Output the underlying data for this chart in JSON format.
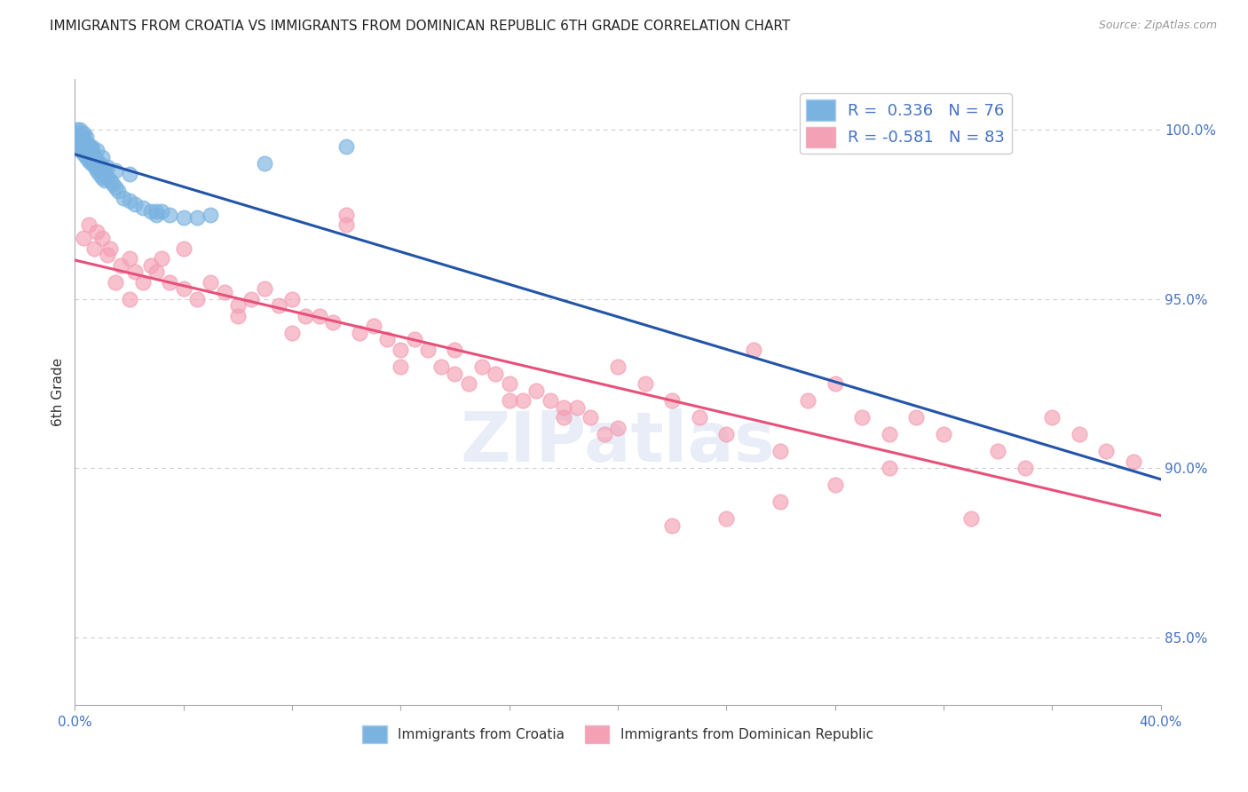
{
  "title": "IMMIGRANTS FROM CROATIA VS IMMIGRANTS FROM DOMINICAN REPUBLIC 6TH GRADE CORRELATION CHART",
  "source": "Source: ZipAtlas.com",
  "ylabel": "6th Grade",
  "xlim": [
    0.0,
    40.0
  ],
  "ylim": [
    83.0,
    101.5
  ],
  "yticks_right": [
    85.0,
    90.0,
    95.0,
    100.0
  ],
  "blue_color": "#7ab3e0",
  "pink_color": "#f4a0b5",
  "blue_line_color": "#2255aa",
  "pink_line_color": "#e8507a",
  "legend_blue_label": "R =  0.336   N = 76",
  "legend_pink_label": "R = -0.581   N = 83",
  "watermark": "ZIPatlas",
  "blue_scatter_x": [
    0.05,
    0.1,
    0.1,
    0.15,
    0.15,
    0.2,
    0.2,
    0.2,
    0.25,
    0.25,
    0.3,
    0.3,
    0.3,
    0.35,
    0.35,
    0.4,
    0.4,
    0.4,
    0.45,
    0.45,
    0.5,
    0.5,
    0.55,
    0.55,
    0.6,
    0.6,
    0.65,
    0.65,
    0.7,
    0.7,
    0.75,
    0.75,
    0.8,
    0.8,
    0.85,
    0.9,
    0.9,
    0.95,
    1.0,
    1.0,
    1.1,
    1.1,
    1.2,
    1.3,
    1.4,
    1.5,
    1.6,
    1.8,
    2.0,
    2.2,
    2.5,
    2.8,
    3.0,
    3.2,
    3.5,
    4.0,
    4.5,
    5.0,
    7.0,
    10.0,
    0.15,
    0.2,
    0.25,
    0.3,
    0.35,
    0.4,
    0.5,
    0.6,
    0.7,
    0.8,
    0.9,
    1.0,
    1.2,
    1.5,
    2.0,
    3.0
  ],
  "blue_scatter_y": [
    99.5,
    99.8,
    100.0,
    99.6,
    99.9,
    99.4,
    99.7,
    100.0,
    99.5,
    99.8,
    99.3,
    99.6,
    99.9,
    99.4,
    99.7,
    99.2,
    99.5,
    99.8,
    99.3,
    99.6,
    99.1,
    99.4,
    99.2,
    99.5,
    99.0,
    99.3,
    99.1,
    99.4,
    99.0,
    99.2,
    98.9,
    99.2,
    98.8,
    99.1,
    98.9,
    98.7,
    99.0,
    98.8,
    98.6,
    98.9,
    98.5,
    98.8,
    98.6,
    98.5,
    98.4,
    98.3,
    98.2,
    98.0,
    97.9,
    97.8,
    97.7,
    97.6,
    97.5,
    97.6,
    97.5,
    97.4,
    97.4,
    97.5,
    99.0,
    99.5,
    99.5,
    99.7,
    99.6,
    99.8,
    99.4,
    99.6,
    99.3,
    99.5,
    99.2,
    99.4,
    99.0,
    99.2,
    98.9,
    98.8,
    98.7,
    97.6
  ],
  "pink_scatter_x": [
    0.3,
    0.5,
    0.7,
    0.8,
    1.0,
    1.2,
    1.3,
    1.5,
    1.7,
    2.0,
    2.2,
    2.5,
    2.8,
    3.0,
    3.2,
    3.5,
    4.0,
    4.5,
    5.0,
    5.5,
    6.0,
    6.5,
    7.0,
    7.5,
    8.0,
    8.5,
    9.0,
    9.5,
    10.0,
    10.5,
    11.0,
    11.5,
    12.0,
    12.5,
    13.0,
    13.5,
    14.0,
    14.5,
    15.0,
    15.5,
    16.0,
    16.5,
    17.0,
    17.5,
    18.0,
    18.5,
    19.0,
    19.5,
    20.0,
    21.0,
    22.0,
    23.0,
    24.0,
    25.0,
    26.0,
    27.0,
    28.0,
    29.0,
    30.0,
    31.0,
    32.0,
    33.0,
    34.0,
    35.0,
    36.0,
    37.0,
    38.0,
    39.0,
    2.0,
    4.0,
    6.0,
    8.0,
    10.0,
    12.0,
    14.0,
    16.0,
    18.0,
    20.0,
    22.0,
    24.0,
    26.0,
    28.0,
    30.0
  ],
  "pink_scatter_y": [
    96.8,
    97.2,
    96.5,
    97.0,
    96.8,
    96.3,
    96.5,
    95.5,
    96.0,
    96.2,
    95.8,
    95.5,
    96.0,
    95.8,
    96.2,
    95.5,
    95.3,
    95.0,
    95.5,
    95.2,
    94.8,
    95.0,
    95.3,
    94.8,
    95.0,
    94.5,
    94.5,
    94.3,
    97.5,
    94.0,
    94.2,
    93.8,
    93.5,
    93.8,
    93.5,
    93.0,
    93.5,
    92.5,
    93.0,
    92.8,
    92.5,
    92.0,
    92.3,
    92.0,
    91.5,
    91.8,
    91.5,
    91.0,
    93.0,
    92.5,
    92.0,
    91.5,
    91.0,
    93.5,
    90.5,
    92.0,
    92.5,
    91.5,
    91.0,
    91.5,
    91.0,
    88.5,
    90.5,
    90.0,
    91.5,
    91.0,
    90.5,
    90.2,
    95.0,
    96.5,
    94.5,
    94.0,
    97.2,
    93.0,
    92.8,
    92.0,
    91.8,
    91.2,
    88.3,
    88.5,
    89.0,
    89.5,
    90.0
  ]
}
